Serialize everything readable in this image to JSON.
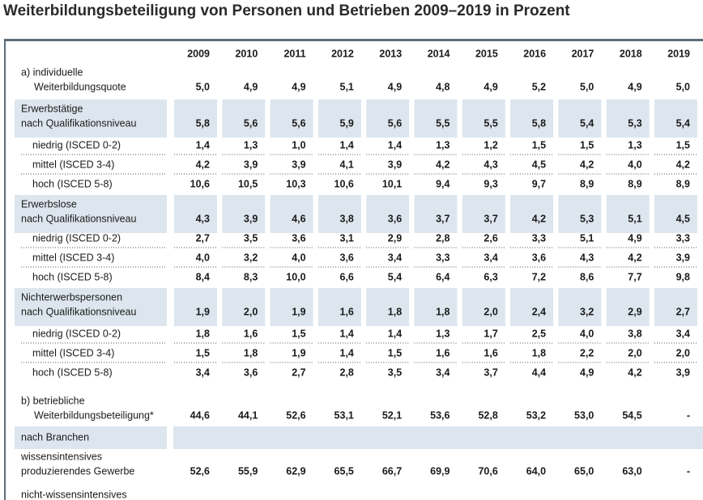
{
  "header": {
    "title": "Weiterbildungsbeteiligung von Personen und Betrieben 2009–2019 in Prozent"
  },
  "table": {
    "columns": [
      "2009",
      "2010",
      "2011",
      "2012",
      "2013",
      "2014",
      "2015",
      "2016",
      "2017",
      "2018",
      "2019"
    ],
    "rows": [
      {
        "label": [
          "a) individuelle",
          "Weiterbildungsquote"
        ],
        "values": [
          "5,0",
          "4,9",
          "4,9",
          "5,1",
          "4,9",
          "4,8",
          "4,9",
          "5,2",
          "5,0",
          "4,9",
          "5,0"
        ]
      },
      {
        "label": [
          "Erwerbstätige",
          "nach Qualifikationsniveau"
        ],
        "shaded": true,
        "values": [
          "5,8",
          "5,6",
          "5,6",
          "5,9",
          "5,6",
          "5,5",
          "5,5",
          "5,8",
          "5,4",
          "5,3",
          "5,4"
        ]
      },
      {
        "label": [
          "niedrig (ISCED 0-2)"
        ],
        "indent": true,
        "values": [
          "1,4",
          "1,3",
          "1,0",
          "1,4",
          "1,4",
          "1,3",
          "1,2",
          "1,5",
          "1,5",
          "1,3",
          "1,5"
        ]
      },
      {
        "label": [
          "mittel (ISCED 3-4)"
        ],
        "indent": true,
        "values": [
          "4,2",
          "3,9",
          "3,9",
          "4,1",
          "3,9",
          "4,2",
          "4,3",
          "4,5",
          "4,2",
          "4,0",
          "4,2"
        ]
      },
      {
        "label": [
          "hoch (ISCED 5-8)"
        ],
        "indent": true,
        "values": [
          "10,6",
          "10,5",
          "10,3",
          "10,6",
          "10,1",
          "9,4",
          "9,3",
          "9,7",
          "8,9",
          "8,9",
          "8,9"
        ]
      },
      {
        "label": [
          "Erwerbslose",
          "nach Qualifikationsniveau"
        ],
        "shaded": true,
        "values": [
          "4,3",
          "3,9",
          "4,6",
          "3,8",
          "3,6",
          "3,7",
          "3,7",
          "4,2",
          "5,3",
          "5,1",
          "4,5"
        ]
      },
      {
        "label": [
          "niedrig (ISCED 0-2)"
        ],
        "indent": true,
        "values": [
          "2,7",
          "3,5",
          "3,6",
          "3,1",
          "2,9",
          "2,8",
          "2,6",
          "3,3",
          "5,1",
          "4,9",
          "3,3"
        ]
      },
      {
        "label": [
          "mittel (ISCED 3-4)"
        ],
        "indent": true,
        "values": [
          "4,0",
          "3,2",
          "4,0",
          "3,6",
          "3,4",
          "3,3",
          "3,4",
          "3,6",
          "4,3",
          "4,2",
          "3,9"
        ]
      },
      {
        "label": [
          "hoch (ISCED 5-8)"
        ],
        "indent": true,
        "values": [
          "8,4",
          "8,3",
          "10,0",
          "6,6",
          "5,4",
          "6,4",
          "6,3",
          "7,2",
          "8,6",
          "7,7",
          "9,8"
        ]
      },
      {
        "label": [
          "Nichterwerbspersonen",
          "nach Qualifikationsniveau"
        ],
        "shaded": true,
        "values": [
          "1,9",
          "2,0",
          "1,9",
          "1,6",
          "1,8",
          "1,8",
          "2,0",
          "2,4",
          "3,2",
          "2,9",
          "2,7"
        ]
      },
      {
        "label": [
          "niedrig (ISCED 0-2)"
        ],
        "indent": true,
        "values": [
          "1,8",
          "1,6",
          "1,5",
          "1,4",
          "1,4",
          "1,3",
          "1,7",
          "2,5",
          "4,0",
          "3,8",
          "3,4"
        ]
      },
      {
        "label": [
          "mittel (ISCED 3-4)"
        ],
        "indent": true,
        "values": [
          "1,5",
          "1,8",
          "1,9",
          "1,4",
          "1,5",
          "1,6",
          "1,6",
          "1,8",
          "2,2",
          "2,0",
          "2,0"
        ]
      },
      {
        "label": [
          "hoch (ISCED 5-8)"
        ],
        "indent": true,
        "values": [
          "3,4",
          "3,6",
          "2,7",
          "2,8",
          "3,5",
          "3,4",
          "3,7",
          "4,4",
          "4,9",
          "4,2",
          "3,9"
        ]
      },
      {
        "label": [
          "b) betriebliche",
          "Weiterbildungsbeteiligung*"
        ],
        "values": [
          "44,6",
          "44,1",
          "52,6",
          "53,1",
          "52,1",
          "53,6",
          "52,8",
          "53,2",
          "53,0",
          "54,5",
          "-"
        ]
      },
      {
        "label": [
          "nach Branchen"
        ],
        "shaded": true,
        "values": []
      },
      {
        "label": [
          "wissensintensives",
          "produzierendes Gewerbe"
        ],
        "values": [
          "52,6",
          "55,9",
          "62,9",
          "65,5",
          "66,7",
          "69,9",
          "70,6",
          "64,0",
          "65,0",
          "63,0",
          "-"
        ]
      },
      {
        "label": [
          "nicht-wissensintensives"
        ],
        "values": []
      }
    ]
  }
}
